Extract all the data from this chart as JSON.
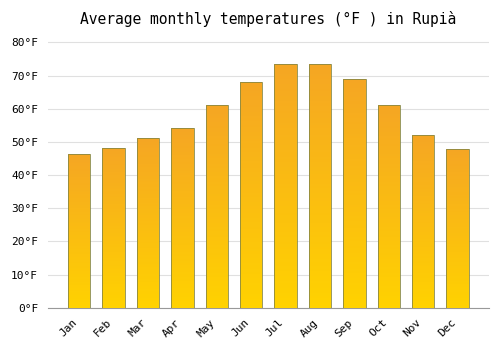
{
  "title": "Average monthly temperatures (°F ) in Rupià",
  "months": [
    "Jan",
    "Feb",
    "Mar",
    "Apr",
    "May",
    "Jun",
    "Jul",
    "Aug",
    "Sep",
    "Oct",
    "Nov",
    "Dec"
  ],
  "values": [
    46.4,
    48.2,
    51.1,
    54.1,
    61.0,
    68.0,
    73.4,
    73.4,
    69.1,
    61.0,
    52.0,
    48.0
  ],
  "bar_color_top": "#F5A623",
  "bar_color_bottom": "#FFD200",
  "bar_edge_color": "#888844",
  "background_color": "#FFFFFF",
  "grid_color": "#E0E0E0",
  "yticks": [
    0,
    10,
    20,
    30,
    40,
    50,
    60,
    70,
    80
  ],
  "ylim": [
    0,
    83
  ],
  "title_fontsize": 10.5,
  "tick_fontsize": 8,
  "font_family": "monospace",
  "gradient_steps": 100,
  "bar_width": 0.65
}
